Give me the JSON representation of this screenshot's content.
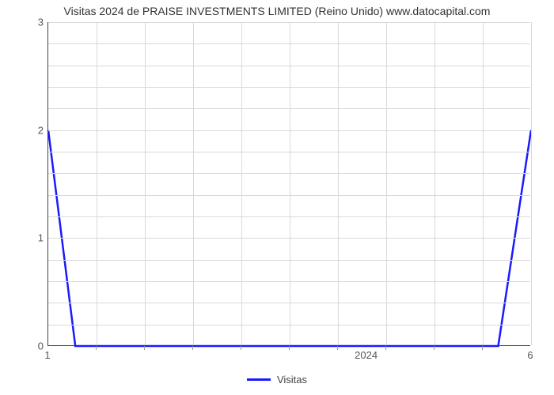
{
  "chart": {
    "type": "line",
    "title": "Visitas 2024 de PRAISE INVESTMENTS LIMITED (Reino Unido) www.datocapital.com",
    "title_fontsize": 14,
    "title_color": "#333333",
    "background_color": "#ffffff",
    "grid_color": "#d9d9d9",
    "axis_color": "#444444",
    "xlim": [
      1,
      6
    ],
    "ylim": [
      0,
      3
    ],
    "yticks": [
      0,
      1,
      2,
      3
    ],
    "xticks_labeled": [
      {
        "value": 1,
        "label": "1"
      },
      {
        "value": 6,
        "label": "6"
      }
    ],
    "xticks_minor": [
      1.5,
      2,
      2.5,
      3,
      3.5,
      4,
      4.5,
      5,
      5.5
    ],
    "x_center_label": {
      "value": 4.3,
      "label": "2024"
    },
    "series": [
      {
        "name": "Visitas",
        "color": "#1a1aff",
        "line_width": 2.5,
        "points": [
          {
            "x": 1.0,
            "y": 2.0
          },
          {
            "x": 1.28,
            "y": 0.0
          },
          {
            "x": 5.66,
            "y": 0.0
          },
          {
            "x": 6.0,
            "y": 2.0
          }
        ]
      }
    ],
    "hgrid_at": [
      0.2,
      0.4,
      0.6,
      0.8,
      1.0,
      1.2,
      1.4,
      1.6,
      1.8,
      2.0,
      2.2,
      2.4,
      2.6,
      2.8,
      3.0
    ],
    "vgrid_at": [
      1.5,
      2,
      2.5,
      3,
      3.5,
      4,
      4.5,
      5,
      5.5,
      6
    ],
    "legend_label": "Visitas",
    "label_fontsize": 13,
    "label_color": "#555555"
  }
}
